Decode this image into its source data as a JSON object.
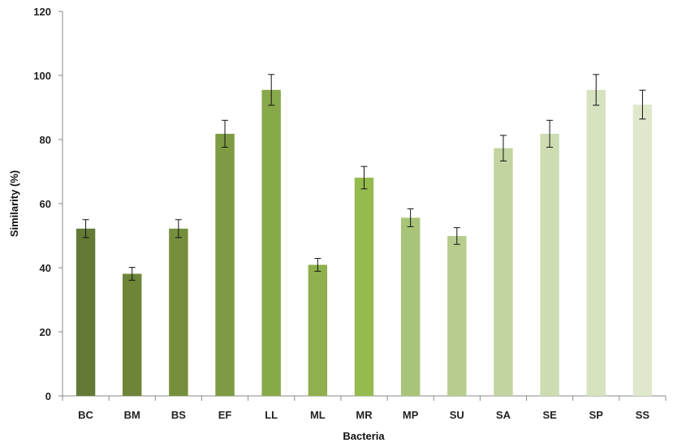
{
  "chart_data": {
    "type": "bar",
    "title": "",
    "xlabel": "Bacteria",
    "ylabel": "Similarity (%)",
    "ylim": [
      0,
      120
    ],
    "yticks": [
      0,
      20,
      40,
      60,
      80,
      100,
      120
    ],
    "grid": false,
    "categories": [
      "BC",
      "BM",
      "BS",
      "EF",
      "LL",
      "ML",
      "MR",
      "MP",
      "SU",
      "SA",
      "SE",
      "SP",
      "SS"
    ],
    "values": [
      52.2,
      38.1,
      52.2,
      81.8,
      95.5,
      40.9,
      68.1,
      55.6,
      49.9,
      77.3,
      81.8,
      95.5,
      90.9
    ],
    "errors": [
      2.8,
      2.0,
      2.8,
      4.2,
      4.8,
      2.0,
      3.5,
      2.8,
      2.6,
      4.0,
      4.2,
      4.8,
      4.5
    ],
    "colors": [
      "#637a36",
      "#6e8538",
      "#758f3c",
      "#7e9b43",
      "#88a94a",
      "#8fb04c",
      "#95bb4e",
      "#a8c478",
      "#b6cd8e",
      "#c2d4a0",
      "#cedcb2",
      "#d7e2bf",
      "#e0e8cc"
    ]
  }
}
